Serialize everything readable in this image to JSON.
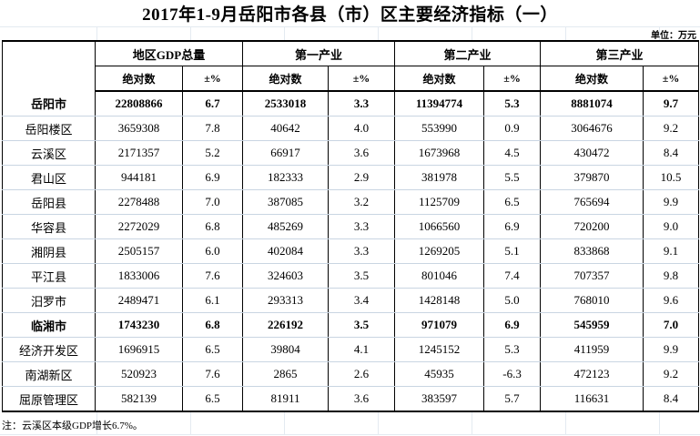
{
  "title": "2017年1-9月岳阳市各县（市）区主要经济指标（一）",
  "unit_label": "单位：万元",
  "table": {
    "corner_label": "",
    "groups": [
      {
        "label": "地区GDP总量"
      },
      {
        "label": "第一产业"
      },
      {
        "label": "第二产业"
      },
      {
        "label": "第三产业"
      }
    ],
    "subheaders": {
      "absolute": "绝对数",
      "pct": "±%"
    },
    "rows": [
      {
        "name": "岳阳市",
        "bold": true,
        "values": [
          "22808866",
          "6.7",
          "2533018",
          "3.3",
          "11394774",
          "5.3",
          "8881074",
          "9.7"
        ]
      },
      {
        "name": "岳阳楼区",
        "bold": false,
        "values": [
          "3659308",
          "7.8",
          "40642",
          "4.0",
          "553990",
          "0.9",
          "3064676",
          "9.2"
        ]
      },
      {
        "name": "云溪区",
        "bold": false,
        "values": [
          "2171357",
          "5.2",
          "66917",
          "3.6",
          "1673968",
          "4.5",
          "430472",
          "8.4"
        ]
      },
      {
        "name": "君山区",
        "bold": false,
        "values": [
          "944181",
          "6.9",
          "182333",
          "2.9",
          "381978",
          "5.5",
          "379870",
          "10.5"
        ]
      },
      {
        "name": "岳阳县",
        "bold": false,
        "values": [
          "2278488",
          "7.0",
          "387085",
          "3.2",
          "1125709",
          "6.5",
          "765694",
          "9.9"
        ]
      },
      {
        "name": "华容县",
        "bold": false,
        "values": [
          "2272029",
          "6.8",
          "485269",
          "3.3",
          "1066560",
          "6.9",
          "720200",
          "9.0"
        ]
      },
      {
        "name": "湘阴县",
        "bold": false,
        "values": [
          "2505157",
          "6.0",
          "402084",
          "3.3",
          "1269205",
          "5.1",
          "833868",
          "9.1"
        ]
      },
      {
        "name": "平江县",
        "bold": false,
        "values": [
          "1833006",
          "7.6",
          "324603",
          "3.5",
          "801046",
          "7.4",
          "707357",
          "9.8"
        ]
      },
      {
        "name": "汨罗市",
        "bold": false,
        "values": [
          "2489471",
          "6.1",
          "293313",
          "3.4",
          "1428148",
          "5.0",
          "768010",
          "9.6"
        ]
      },
      {
        "name": "临湘市",
        "bold": true,
        "values": [
          "1743230",
          "6.8",
          "226192",
          "3.5",
          "971079",
          "6.9",
          "545959",
          "7.0"
        ]
      },
      {
        "name": "经济开发区",
        "bold": false,
        "values": [
          "1696915",
          "6.5",
          "39804",
          "4.1",
          "1245152",
          "5.3",
          "411959",
          "9.9"
        ]
      },
      {
        "name": "南湖新区",
        "bold": false,
        "values": [
          "520923",
          "7.6",
          "2865",
          "2.6",
          "45935",
          "-6.3",
          "472123",
          "9.2"
        ]
      },
      {
        "name": "屈原管理区",
        "bold": false,
        "values": [
          "582139",
          "6.5",
          "81911",
          "3.6",
          "383597",
          "5.7",
          "116631",
          "8.4"
        ]
      }
    ]
  },
  "footnote": "注：云溪区本级GDP增长6.7%。",
  "colors": {
    "border_dark": "#000000",
    "grid_light": "#c9d5e2",
    "background": "#ffffff",
    "text": "#000000"
  }
}
